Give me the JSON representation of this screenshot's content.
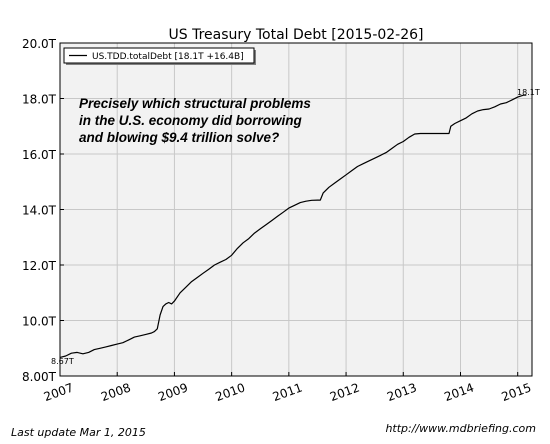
{
  "chart_data": {
    "type": "line",
    "title": "US Treasury Total Debt  [2015-02-26]",
    "xlabel": "",
    "ylabel": "",
    "xlim": [
      2007.0,
      2015.25
    ],
    "ylim": [
      8.0,
      20.0
    ],
    "x_ticks": [
      2007,
      2008,
      2009,
      2010,
      2011,
      2012,
      2013,
      2014,
      2015
    ],
    "x_tick_labels": [
      "2007",
      "2008",
      "2009",
      "2010",
      "2011",
      "2012",
      "2013",
      "2014",
      "2015"
    ],
    "y_ticks": [
      8,
      10,
      12,
      14,
      16,
      18,
      20
    ],
    "y_tick_labels": [
      "8.00T",
      "10.0T",
      "12.0T",
      "14.0T",
      "16.0T",
      "18.0T",
      "20.0T"
    ],
    "grid": true,
    "legend_position": "top-left",
    "annotation": "Precisely which structural problems\nin the U.S. economy did borrowing\nand blowing $9.4 trillion solve?",
    "start_label": "8.67T",
    "end_label": "18.1T",
    "series": [
      {
        "name": "US.TDD.totalDebt [18.1T +16.4B]",
        "color": "#000000",
        "x": [
          2007.0,
          2007.1,
          2007.2,
          2007.3,
          2007.4,
          2007.5,
          2007.6,
          2007.7,
          2007.8,
          2007.9,
          2008.0,
          2008.1,
          2008.2,
          2008.3,
          2008.4,
          2008.5,
          2008.6,
          2008.65,
          2008.7,
          2008.75,
          2008.8,
          2008.85,
          2008.9,
          2008.95,
          2009.0,
          2009.1,
          2009.2,
          2009.3,
          2009.4,
          2009.5,
          2009.6,
          2009.7,
          2009.8,
          2009.9,
          2010.0,
          2010.1,
          2010.2,
          2010.3,
          2010.4,
          2010.5,
          2010.6,
          2010.7,
          2010.8,
          2010.9,
          2011.0,
          2011.1,
          2011.2,
          2011.3,
          2011.4,
          2011.5,
          2011.55,
          2011.6,
          2011.7,
          2011.8,
          2011.9,
          2012.0,
          2012.1,
          2012.2,
          2012.3,
          2012.4,
          2012.5,
          2012.6,
          2012.7,
          2012.8,
          2012.9,
          2013.0,
          2013.1,
          2013.2,
          2013.3,
          2013.4,
          2013.5,
          2013.6,
          2013.7,
          2013.8,
          2013.83,
          2013.9,
          2014.0,
          2014.1,
          2014.2,
          2014.3,
          2014.4,
          2014.5,
          2014.6,
          2014.7,
          2014.8,
          2014.9,
          2015.0,
          2015.1,
          2015.15
        ],
        "y": [
          8.67,
          8.72,
          8.82,
          8.85,
          8.8,
          8.85,
          8.95,
          9.0,
          9.05,
          9.1,
          9.15,
          9.2,
          9.3,
          9.4,
          9.45,
          9.5,
          9.55,
          9.6,
          9.7,
          10.2,
          10.5,
          10.6,
          10.65,
          10.6,
          10.7,
          11.0,
          11.2,
          11.4,
          11.55,
          11.7,
          11.85,
          12.0,
          12.1,
          12.2,
          12.35,
          12.6,
          12.8,
          12.95,
          13.15,
          13.3,
          13.45,
          13.6,
          13.75,
          13.9,
          14.05,
          14.15,
          14.25,
          14.3,
          14.33,
          14.34,
          14.34,
          14.6,
          14.8,
          14.95,
          15.1,
          15.25,
          15.4,
          15.55,
          15.65,
          15.75,
          15.85,
          15.95,
          16.05,
          16.2,
          16.35,
          16.45,
          16.6,
          16.72,
          16.74,
          16.74,
          16.74,
          16.74,
          16.74,
          16.74,
          17.0,
          17.1,
          17.2,
          17.3,
          17.45,
          17.55,
          17.6,
          17.62,
          17.7,
          17.8,
          17.85,
          17.95,
          18.05,
          18.12,
          18.12
        ]
      }
    ]
  },
  "footer": {
    "last_update": "Last update Mar  1, 2015",
    "source_url": "http://www.mdbriefing.com"
  }
}
